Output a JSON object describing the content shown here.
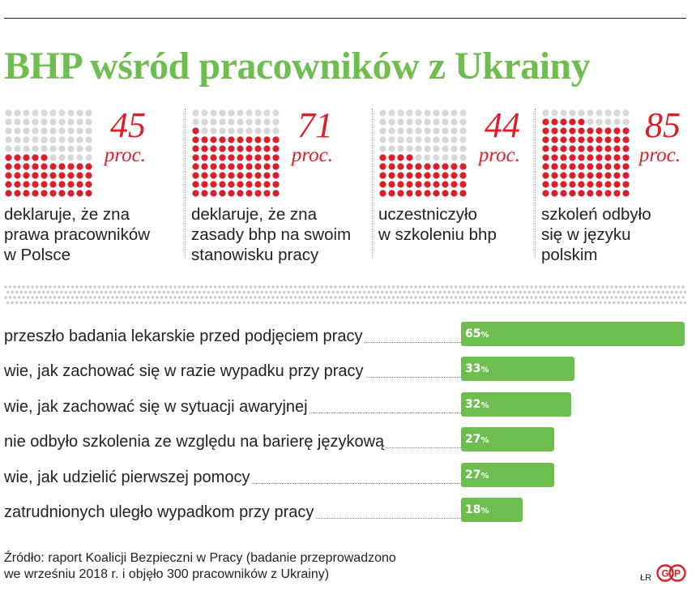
{
  "title": "BHP wśród pracowników z Ukrainy",
  "stats": [
    {
      "value": "45",
      "unit": "proc.",
      "percent": 45,
      "lines": [
        "deklaruje, że zna",
        "prawa pracowników",
        "w Polsce"
      ]
    },
    {
      "value": "71",
      "unit": "proc.",
      "percent": 71,
      "lines": [
        "deklaruje, że zna",
        "zasady bhp na swoim",
        "stanowisku pracy"
      ]
    },
    {
      "value": "44",
      "unit": "proc.",
      "percent": 44,
      "lines": [
        "uczestniczyło",
        "w szkoleniu bhp"
      ]
    },
    {
      "value": "85",
      "unit": "proc.",
      "percent": 85,
      "lines": [
        "szkoleń odbyło",
        "się w języku",
        "polskim"
      ]
    }
  ],
  "colors": {
    "accent": "#6dbd4f",
    "red": "#d9202a",
    "grey_dot": "#d7d7d7",
    "text": "#222222"
  },
  "chart_data": {
    "type": "bar",
    "categories": [
      "przeszło badania lekarskie przed podjęciem pracy",
      "wie, jak zachować się w razie wypadku przy pracy",
      "wie, jak zachować się w sytuacji awaryjnej",
      "nie odbyło szkolenia ze względu na barierę językową",
      "wie, jak udzielić pierwszej pomocy",
      "zatrudnionych uległo wypadkom przy pracy"
    ],
    "values": [
      65,
      33,
      32,
      27,
      27,
      18
    ],
    "value_suffix": "%",
    "orientation": "horizontal"
  },
  "source": {
    "line1": "Źródło: raport Koalicji Bezpieczni w Pracy (badanie przeprowadzono",
    "line2": "we wrześniu 2018 r. i objęło 300 pracowników z Ukrainy)"
  },
  "credit": "ŁR",
  "logo_text": "GP"
}
